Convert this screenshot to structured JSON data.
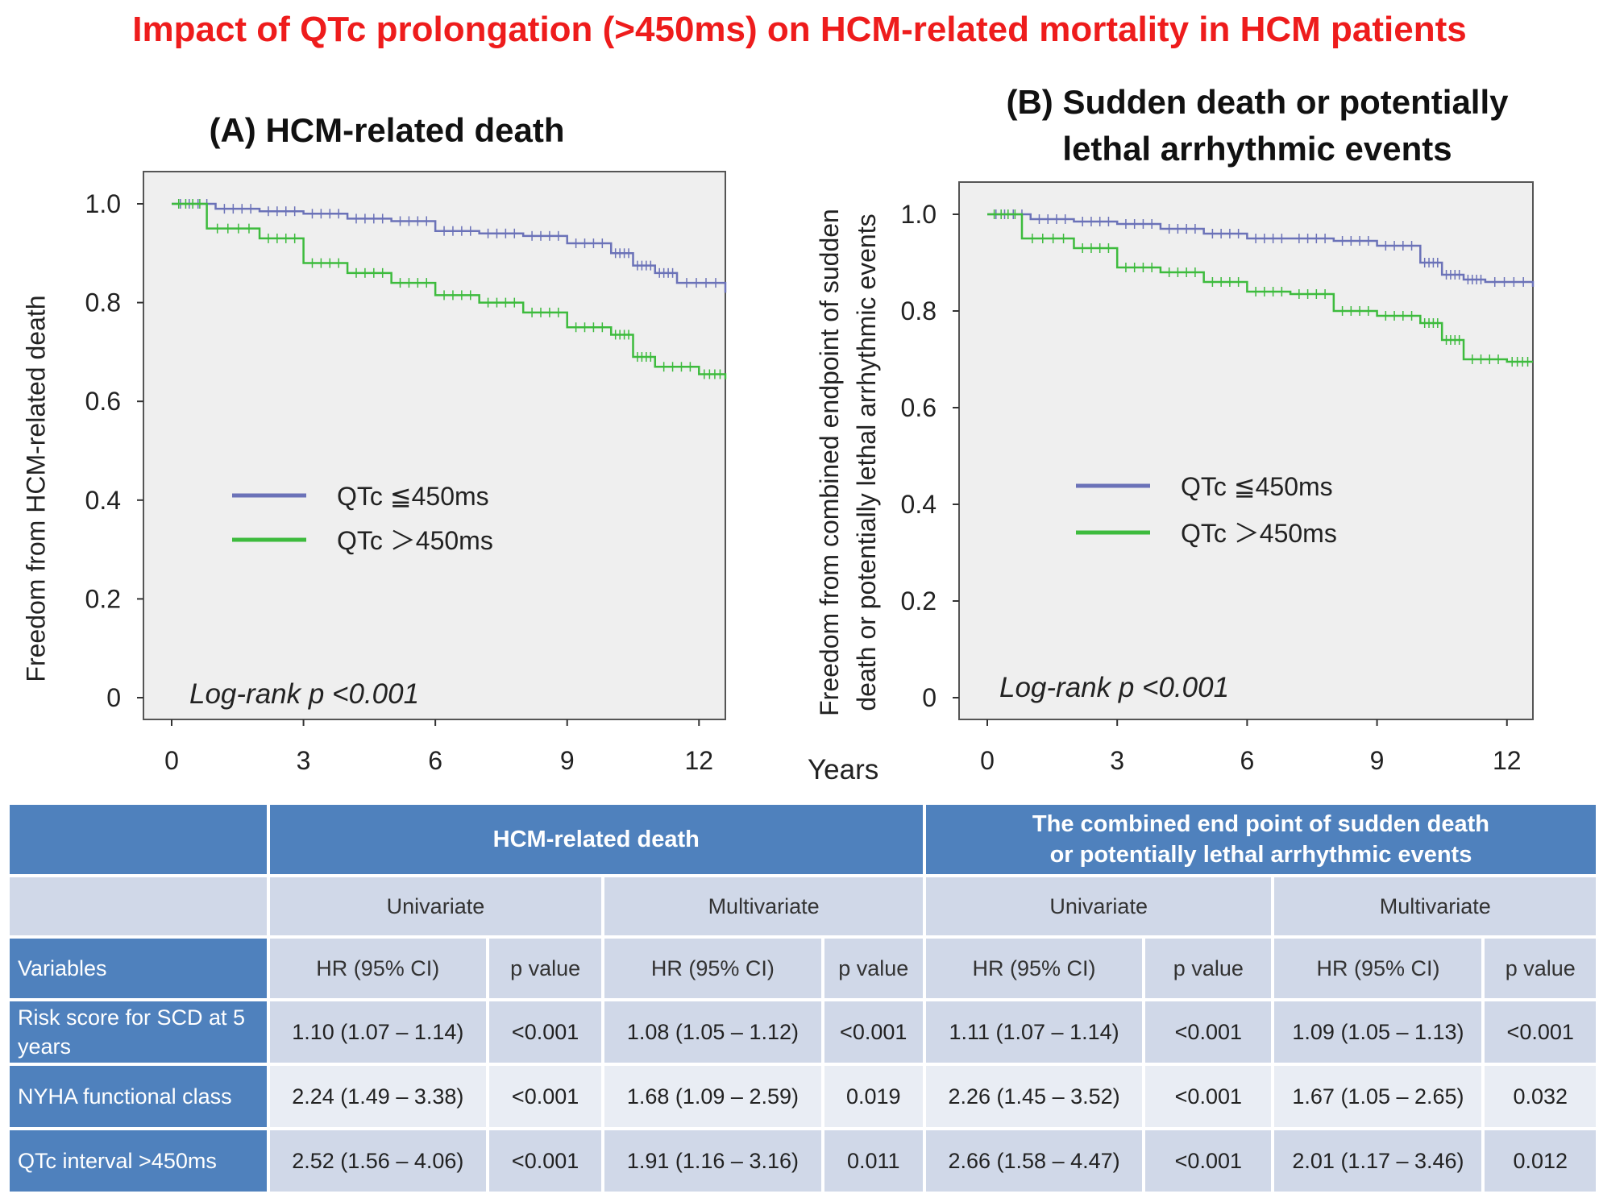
{
  "title": "Impact of QTc prolongation (>450ms) on HCM-related mortality in HCM patients",
  "colors": {
    "title": "#ee1c1c",
    "blue": "#6b72b8",
    "green": "#3dbb3d",
    "header": "#4f81bd"
  },
  "chart_data": [
    {
      "type": "line",
      "panel_letter": "(A)",
      "title": "HCM-related death",
      "xlabel": "Years",
      "ylabel": "Freedom from HCM-related death",
      "xlim": [
        0,
        12.6
      ],
      "ylim": [
        0,
        1.0
      ],
      "x_ticks": [
        "0",
        "3",
        "6",
        "9",
        "12"
      ],
      "y_ticks": [
        "0",
        "0.2",
        "0.4",
        "0.6",
        "0.8",
        "1.0"
      ],
      "legend_placement": "center-left",
      "annotation": "Log-rank p <0.001",
      "series": [
        {
          "name": "QTc ≦450ms",
          "points": [
            [
              0,
              1.0
            ],
            [
              1,
              0.99
            ],
            [
              2,
              0.985
            ],
            [
              3,
              0.98
            ],
            [
              4,
              0.97
            ],
            [
              5,
              0.965
            ],
            [
              6,
              0.945
            ],
            [
              7,
              0.94
            ],
            [
              8,
              0.935
            ],
            [
              9,
              0.92
            ],
            [
              10,
              0.9
            ],
            [
              10.5,
              0.875
            ],
            [
              11,
              0.86
            ],
            [
              11.5,
              0.84
            ],
            [
              12.6,
              0.82
            ]
          ]
        },
        {
          "name": "QTc ＞450ms",
          "points": [
            [
              0,
              1.0
            ],
            [
              0.8,
              0.95
            ],
            [
              2,
              0.93
            ],
            [
              3,
              0.88
            ],
            [
              4,
              0.86
            ],
            [
              5,
              0.84
            ],
            [
              6,
              0.815
            ],
            [
              7,
              0.8
            ],
            [
              8,
              0.78
            ],
            [
              9,
              0.75
            ],
            [
              10,
              0.735
            ],
            [
              10.5,
              0.69
            ],
            [
              11,
              0.67
            ],
            [
              12,
              0.655
            ],
            [
              12.6,
              0.645
            ]
          ]
        }
      ]
    },
    {
      "type": "line",
      "panel_letter": "(B)",
      "title_lines": [
        "Sudden death  or potentially",
        "lethal arrhythmic events"
      ],
      "xlabel": "Years",
      "ylabel_lines": [
        "Freedom from combined endpoint of sudden",
        "death or potentially lethal arrhythmic events"
      ],
      "xlim": [
        0,
        12.6
      ],
      "ylim": [
        0,
        1.0
      ],
      "x_ticks": [
        "0",
        "3",
        "6",
        "9",
        "12"
      ],
      "y_ticks": [
        "0",
        "0.2",
        "0.4",
        "0.6",
        "0.8",
        "1.0"
      ],
      "legend_placement": "center-left",
      "annotation": "Log-rank p <0.001",
      "series": [
        {
          "name": "QTc ≦450ms",
          "points": [
            [
              0,
              1.0
            ],
            [
              1,
              0.99
            ],
            [
              2,
              0.985
            ],
            [
              3,
              0.98
            ],
            [
              4,
              0.97
            ],
            [
              5,
              0.96
            ],
            [
              6,
              0.95
            ],
            [
              7,
              0.95
            ],
            [
              8,
              0.945
            ],
            [
              9,
              0.935
            ],
            [
              10,
              0.9
            ],
            [
              10.5,
              0.875
            ],
            [
              11,
              0.865
            ],
            [
              11.5,
              0.86
            ],
            [
              12.6,
              0.85
            ]
          ]
        },
        {
          "name": "QTc ＞450ms",
          "points": [
            [
              0,
              1.0
            ],
            [
              0.8,
              0.95
            ],
            [
              2,
              0.93
            ],
            [
              3,
              0.89
            ],
            [
              4,
              0.88
            ],
            [
              5,
              0.86
            ],
            [
              6,
              0.84
            ],
            [
              7,
              0.835
            ],
            [
              8,
              0.8
            ],
            [
              9,
              0.79
            ],
            [
              10,
              0.775
            ],
            [
              10.5,
              0.74
            ],
            [
              11,
              0.7
            ],
            [
              12,
              0.695
            ],
            [
              12.6,
              0.695
            ]
          ]
        }
      ]
    }
  ],
  "table": {
    "group_headers": [
      "HCM-related death",
      "The combined end point of sudden death",
      "or potentially lethal arrhythmic events"
    ],
    "analysis_headers": [
      "Univariate",
      "Multivariate",
      "Univariate",
      "Multivariate"
    ],
    "variables_label": "Variables",
    "col_headers": [
      "HR (95% CI)",
      "p value",
      "HR (95% CI)",
      "p value",
      "HR (95% CI)",
      "p value",
      "HR (95% CI)",
      "p value"
    ],
    "rows": [
      {
        "variable": "Risk score for SCD at 5 years",
        "cells": [
          "1.10 (1.07 – 1.14)",
          "<0.001",
          "1.08 (1.05 – 1.12)",
          "<0.001",
          "1.11 (1.07 – 1.14)",
          "<0.001",
          "1.09 (1.05 – 1.13)",
          "<0.001"
        ]
      },
      {
        "variable": "NYHA functional class",
        "cells": [
          "2.24 (1.49 – 3.38)",
          "<0.001",
          "1.68 (1.09 – 2.59)",
          "0.019",
          "2.26 (1.45 – 3.52)",
          "<0.001",
          "1.67 (1.05 – 2.65)",
          "0.032"
        ]
      },
      {
        "variable": "QTc interval >450ms",
        "cells": [
          "2.52 (1.56 – 4.06)",
          "<0.001",
          "1.91 (1.16 – 3.16)",
          "0.011",
          "2.66 (1.58 – 4.47)",
          "<0.001",
          "2.01 (1.17 – 3.46)",
          "0.012"
        ]
      }
    ]
  }
}
